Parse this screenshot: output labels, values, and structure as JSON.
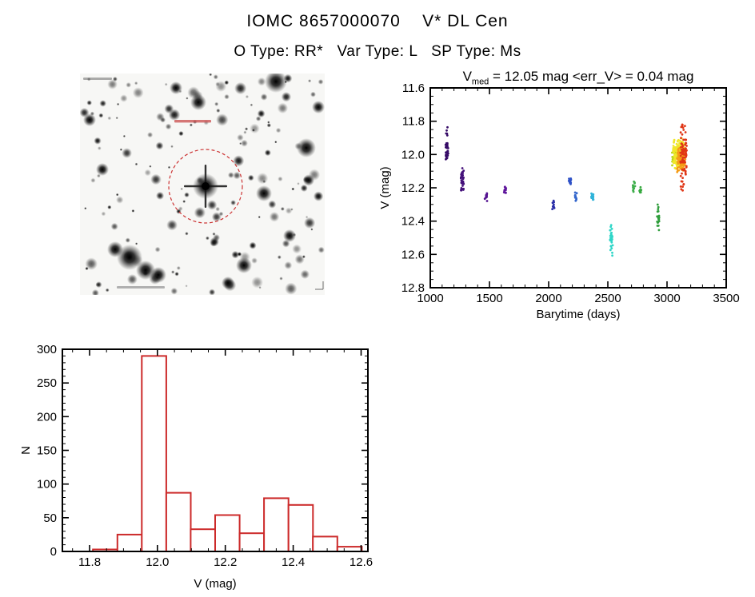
{
  "header": {
    "title": "IOMC 8657000070    V* DL Cen",
    "subtitle": "O Type: RR*   Var Type: L   SP Type: Ms"
  },
  "finding_chart": {
    "target_circle_color": "#cc3333",
    "annotation_color": "#cc5555"
  },
  "chart_data": [
    {
      "id": "lightcurve",
      "type": "scatter",
      "title_parts": {
        "prefix": "V",
        "sub": "med",
        "rest": " = 12.05 mag <err_V> = 0.04 mag"
      },
      "stats": {
        "v_med_mag": 12.05,
        "err_v_mag": 0.04
      },
      "xlabel": "Barytime (days)",
      "ylabel": "V (mag)",
      "xlim": [
        1000,
        3500
      ],
      "ylim": [
        11.6,
        12.8
      ],
      "y_axis_inverted_magnitudes": true,
      "x_ticks": [
        1000,
        1500,
        2000,
        2500,
        3000,
        3500
      ],
      "x_tick_labels": [
        "1000",
        "1500",
        "2000",
        "2500",
        "3000",
        "3500"
      ],
      "x_minor_step": 100,
      "y_ticks": [
        11.6,
        11.8,
        12.0,
        12.2,
        12.4,
        12.6,
        12.8
      ],
      "y_tick_labels": [
        "11.6",
        "11.8",
        "12.0",
        "12.2",
        "12.4",
        "12.6",
        "12.8"
      ],
      "y_minor_step": 0.05,
      "grid": false,
      "clusters": [
        {
          "x": 1140,
          "ymin": 11.82,
          "ymax": 11.9,
          "n": 5,
          "jitter": 20,
          "color": "#350a66"
        },
        {
          "x": 1140,
          "ymin": 11.92,
          "ymax": 12.06,
          "n": 34,
          "jitter": 24,
          "color": "#350a66"
        },
        {
          "x": 1270,
          "ymin": 12.06,
          "ymax": 12.24,
          "n": 34,
          "jitter": 24,
          "color": "#44107a"
        },
        {
          "x": 1470,
          "ymin": 12.21,
          "ymax": 12.29,
          "n": 12,
          "jitter": 20,
          "color": "#541290"
        },
        {
          "x": 1630,
          "ymin": 12.17,
          "ymax": 12.25,
          "n": 14,
          "jitter": 20,
          "color": "#5f169c"
        },
        {
          "x": 2040,
          "ymin": 12.26,
          "ymax": 12.37,
          "n": 12,
          "jitter": 20,
          "color": "#2b2fa8"
        },
        {
          "x": 2180,
          "ymin": 12.13,
          "ymax": 12.2,
          "n": 14,
          "jitter": 20,
          "color": "#2f52c7"
        },
        {
          "x": 2230,
          "ymin": 12.22,
          "ymax": 12.29,
          "n": 10,
          "jitter": 18,
          "color": "#3366cc"
        },
        {
          "x": 2370,
          "ymin": 12.21,
          "ymax": 12.29,
          "n": 14,
          "jitter": 22,
          "color": "#2fb3d9"
        },
        {
          "x": 2530,
          "ymin": 12.4,
          "ymax": 12.61,
          "n": 30,
          "jitter": 22,
          "color": "#2fd6c8"
        },
        {
          "x": 2720,
          "ymin": 12.16,
          "ymax": 12.23,
          "n": 16,
          "jitter": 20,
          "color": "#3fae4c"
        },
        {
          "x": 2775,
          "ymin": 12.19,
          "ymax": 12.25,
          "n": 10,
          "jitter": 16,
          "color": "#36a93f"
        },
        {
          "x": 2925,
          "ymin": 12.28,
          "ymax": 12.47,
          "n": 22,
          "jitter": 18,
          "color": "#2f9e3c"
        },
        {
          "x": 3075,
          "ymin": 11.95,
          "ymax": 12.08,
          "n": 40,
          "jitter": 70,
          "color": "#b8d414"
        },
        {
          "x": 3095,
          "ymin": 11.9,
          "ymax": 12.09,
          "n": 140,
          "jitter": 90,
          "color": "#f0e62a"
        },
        {
          "x": 3120,
          "ymin": 11.93,
          "ymax": 12.12,
          "n": 90,
          "jitter": 70,
          "color": "#f59b17"
        },
        {
          "x": 3140,
          "ymin": 11.85,
          "ymax": 12.15,
          "n": 70,
          "jitter": 55,
          "color": "#e03616"
        },
        {
          "x": 3135,
          "ymin": 11.79,
          "ymax": 11.86,
          "n": 6,
          "jitter": 35,
          "color": "#e03616"
        },
        {
          "x": 3130,
          "ymin": 12.15,
          "ymax": 12.22,
          "n": 8,
          "jitter": 30,
          "color": "#e03616"
        }
      ]
    },
    {
      "id": "histogram",
      "type": "bar",
      "xlabel": "V (mag)",
      "ylabel": "N",
      "xlim": [
        11.72,
        12.62
      ],
      "ylim": [
        0,
        300
      ],
      "x_ticks": [
        11.8,
        12.0,
        12.2,
        12.4,
        12.6
      ],
      "x_tick_labels": [
        "11.8",
        "12.0",
        "12.2",
        "12.4",
        "12.6"
      ],
      "x_minor_step": 0.05,
      "y_ticks": [
        0,
        50,
        100,
        150,
        200,
        250,
        300
      ],
      "y_tick_labels": [
        "0",
        "50",
        "100",
        "150",
        "200",
        "250",
        "300"
      ],
      "y_minor_step": 10,
      "grid": false,
      "bin_start": 11.81,
      "bin_width": 0.072,
      "values": [
        3,
        25,
        290,
        87,
        33,
        54,
        27,
        79,
        69,
        22,
        7
      ],
      "bar_color": "#cc2a2a"
    }
  ]
}
